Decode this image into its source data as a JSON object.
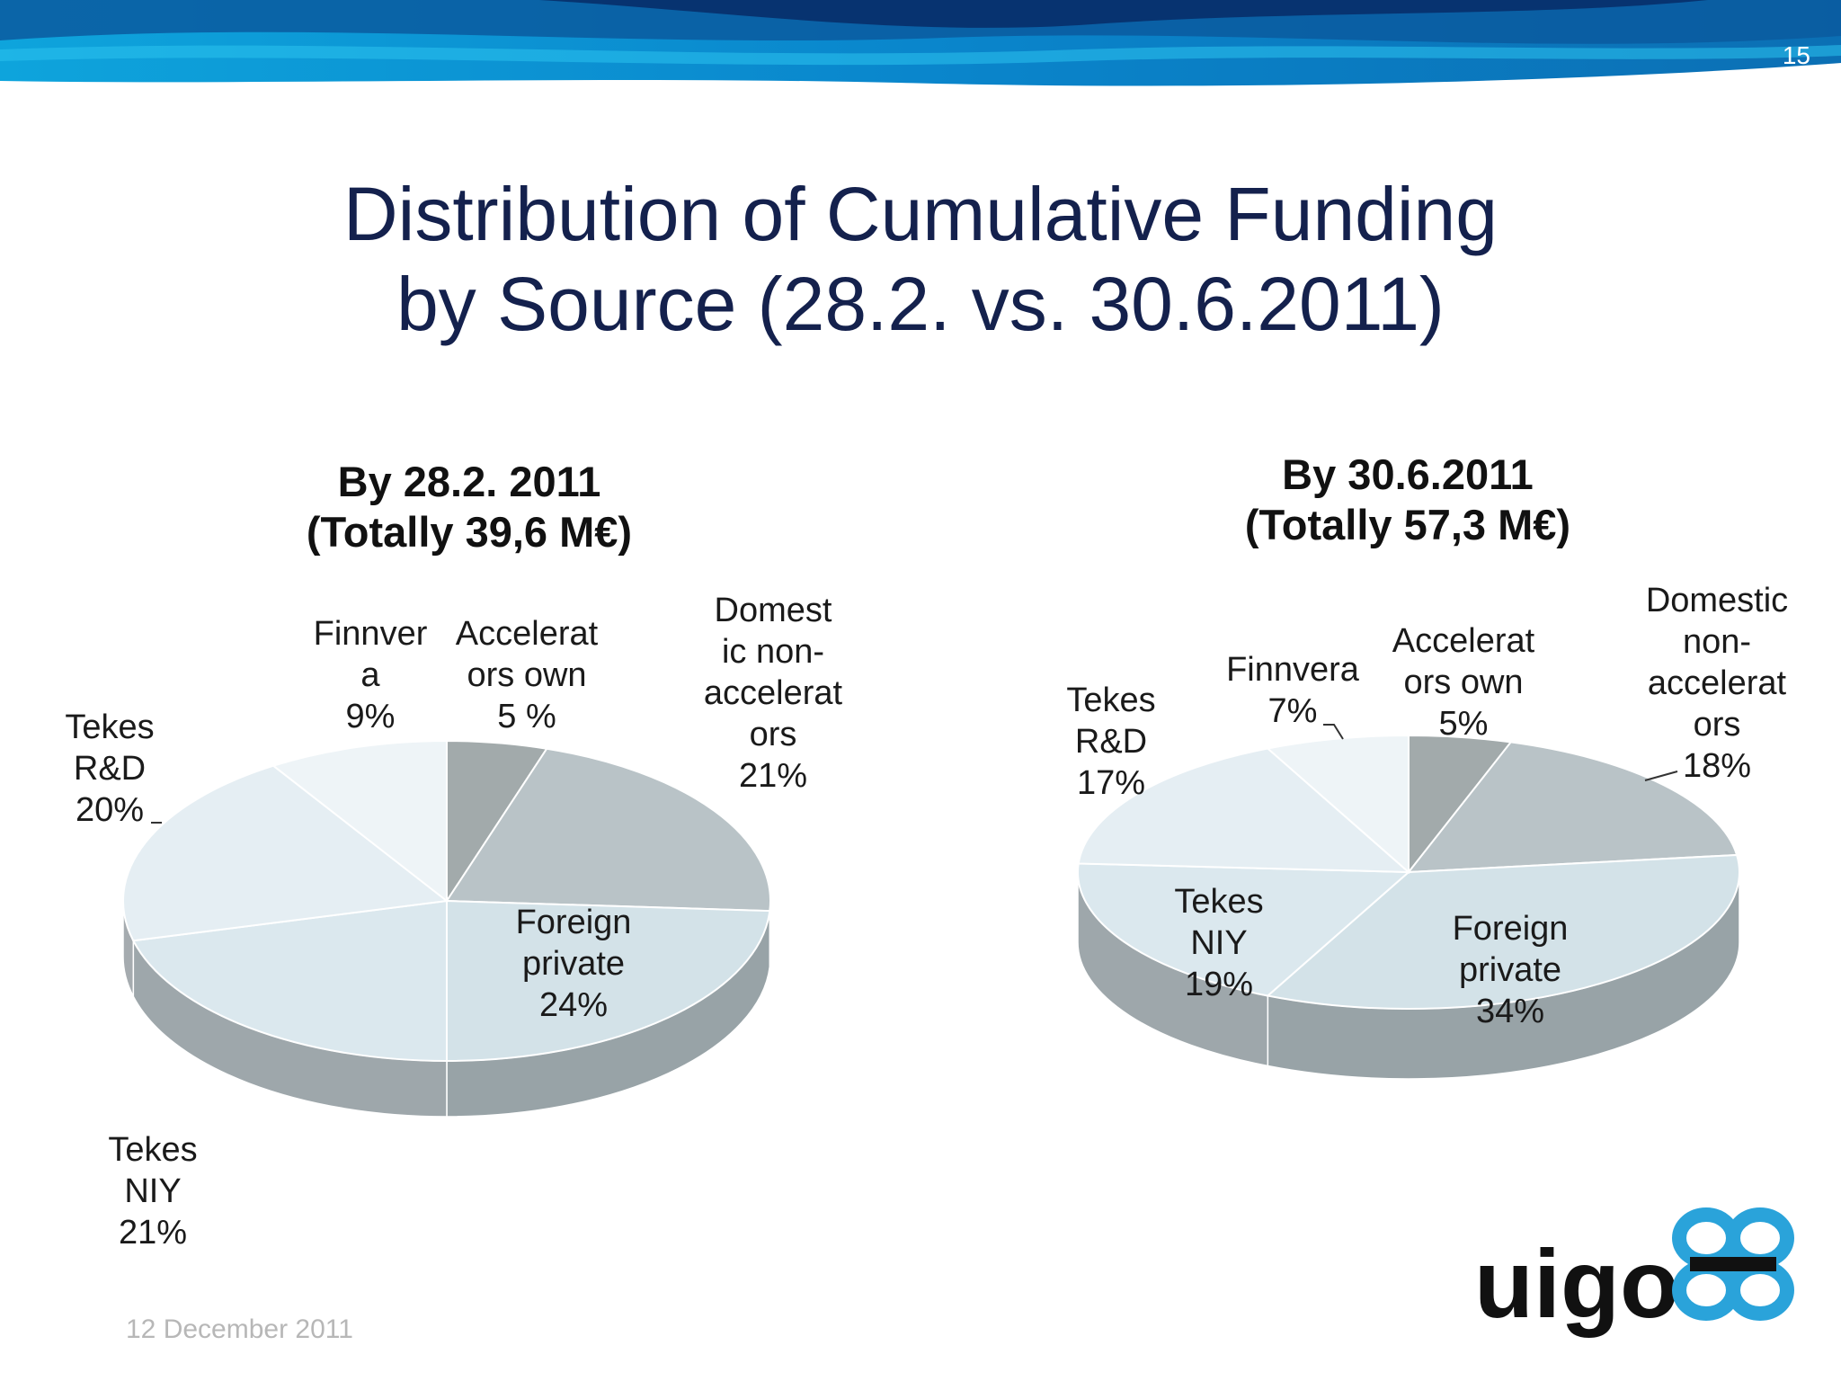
{
  "page_number": "15",
  "title": {
    "line1": "Distribution of Cumulative Funding",
    "line2": "by Source (28.2. vs. 30.6.2011)"
  },
  "footer_date": "12 December 2011",
  "logo": {
    "text": "uigo",
    "icon": "vigo-logo-icon"
  },
  "colors": {
    "banner_dark": "#0b4f8c",
    "banner_mid": "#0a7cc4",
    "banner_light": "#12a9df",
    "title": "#14214d",
    "logo_dark": "#111111",
    "logo_accent": "#2aa3da"
  },
  "chart_data": [
    {
      "type": "pie",
      "title": "By 28.2. 2011",
      "subtitle": "(Totally 39,6 M€)",
      "slices": [
        {
          "label_lines": [
            "Accelerat",
            "ors own",
            "5 %"
          ],
          "value": 5,
          "color": "#a2aaab"
        },
        {
          "label_lines": [
            "Domest",
            "ic non-",
            "accelerat",
            "ors",
            "21%"
          ],
          "value": 21,
          "color": "#b9c3c7"
        },
        {
          "label_lines": [
            "Foreign",
            "private",
            "24%"
          ],
          "value": 24,
          "color": "#d3e2e8"
        },
        {
          "label_lines": [
            "Tekes",
            "NIY",
            "21%"
          ],
          "value": 21,
          "color": "#dbe8ee"
        },
        {
          "label_lines": [
            "Tekes",
            "R&D",
            "20%"
          ],
          "value": 20,
          "color": "#e5eef3"
        },
        {
          "label_lines": [
            "Finnver",
            "a",
            "9%"
          ],
          "value": 9,
          "color": "#eef4f7"
        }
      ]
    },
    {
      "type": "pie",
      "title": "By 30.6.2011",
      "subtitle": "(Totally 57,3 M€)",
      "slices": [
        {
          "label_lines": [
            "Accelerat",
            "ors own",
            "5%"
          ],
          "value": 5,
          "color": "#a2aaab"
        },
        {
          "label_lines": [
            "Domestic",
            "non-",
            "accelerat",
            "ors",
            "18%"
          ],
          "value": 18,
          "color": "#b9c3c7"
        },
        {
          "label_lines": [
            "Foreign",
            "private",
            "34%"
          ],
          "value": 34,
          "color": "#d3e2e8"
        },
        {
          "label_lines": [
            "Tekes",
            "NIY",
            "19%"
          ],
          "value": 19,
          "color": "#dbe8ee"
        },
        {
          "label_lines": [
            "Tekes",
            "R&D",
            "17%"
          ],
          "value": 17,
          "color": "#e5eef3"
        },
        {
          "label_lines": [
            "Finnvera",
            "7%"
          ],
          "value": 7,
          "color": "#eef4f7"
        }
      ]
    }
  ]
}
